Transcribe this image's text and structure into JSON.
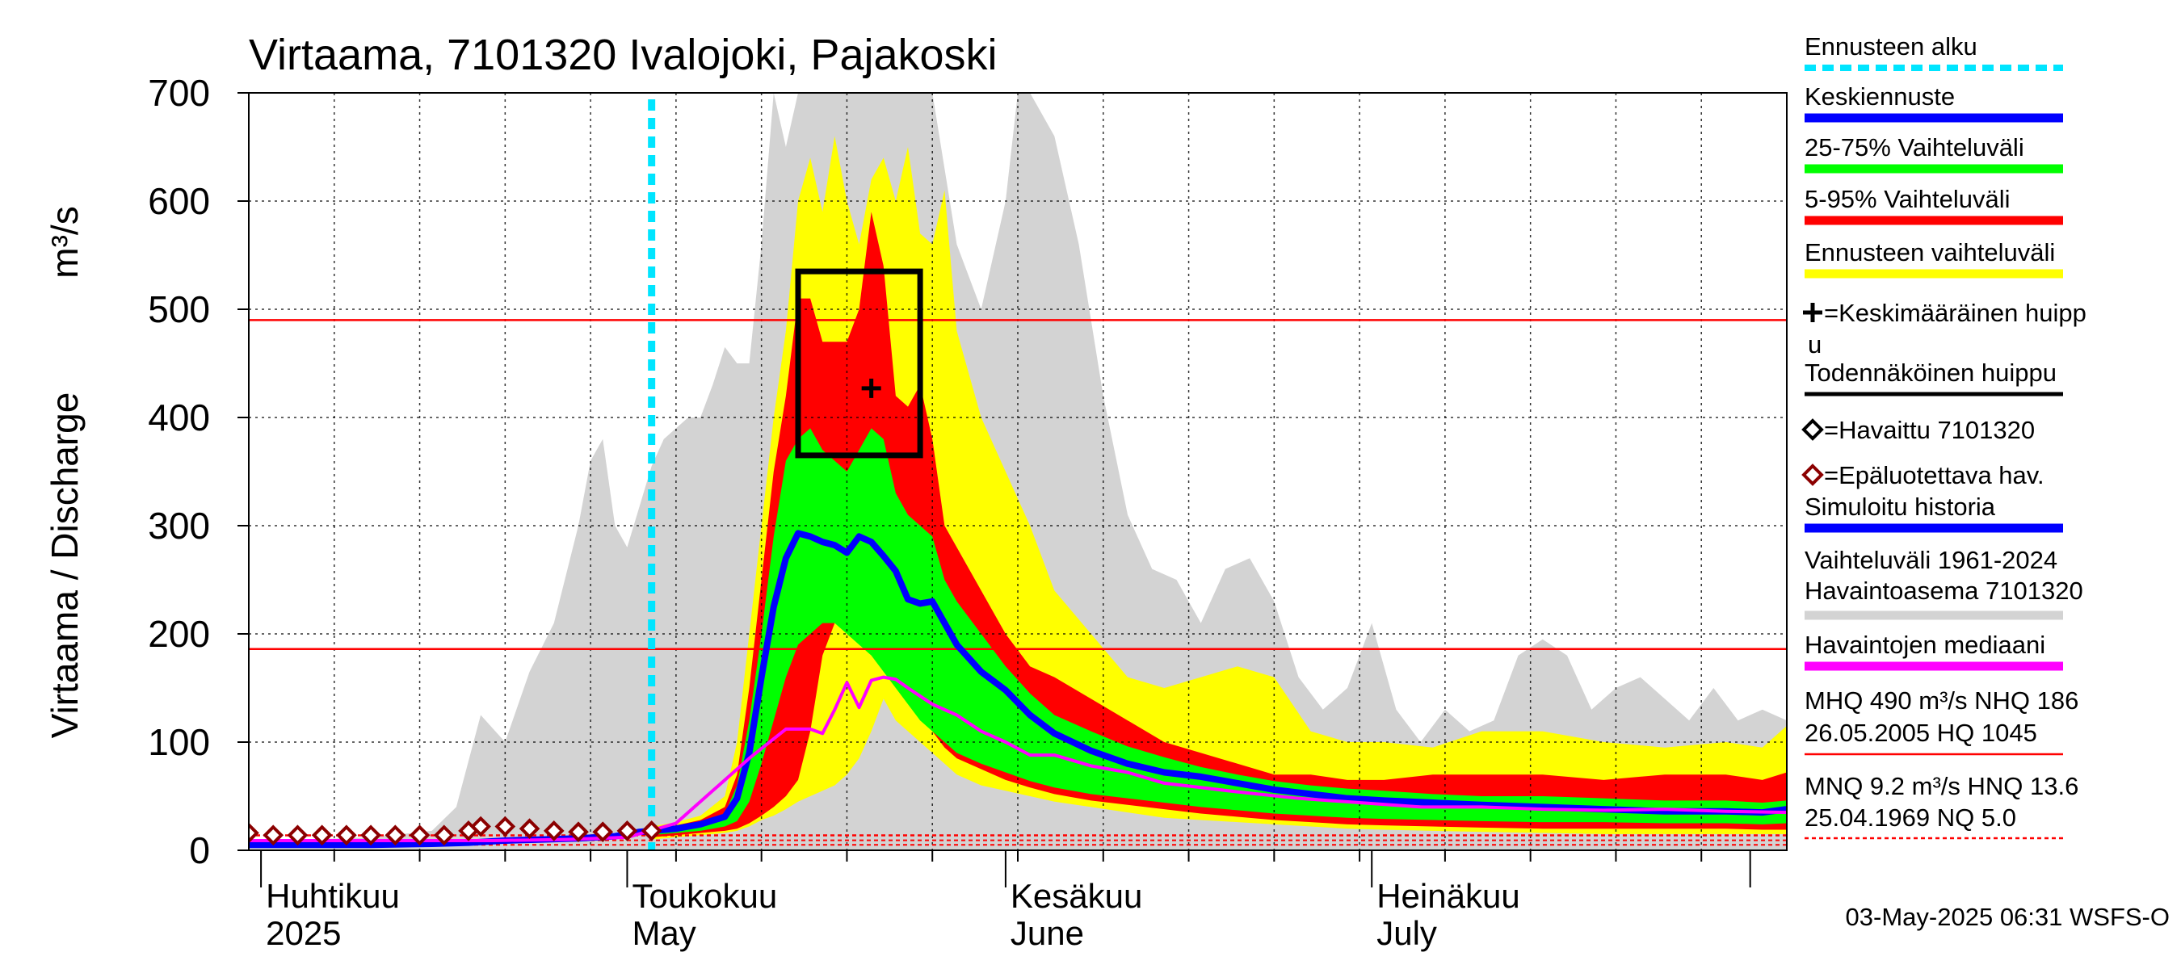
{
  "chart_data": {
    "type": "area",
    "title": "Virtaama, 7101320 Ivalojoki, Pajakoski",
    "ylabel": "Virtaama / Discharge",
    "yunit": "m³/s",
    "ylim": [
      0,
      700
    ],
    "yticks": [
      0,
      100,
      200,
      300,
      400,
      500,
      600,
      700
    ],
    "xlim": [
      "2025-03-31",
      "2025-08-04"
    ],
    "x_month_ticks": [
      "2025-04-01",
      "2025-05-01",
      "2025-06-01",
      "2025-07-01",
      "2025-08-01"
    ],
    "x_week_ticks": [
      "2025-04-07",
      "2025-04-14",
      "2025-04-21",
      "2025-04-28",
      "2025-05-05",
      "2025-05-12",
      "2025-05-19",
      "2025-05-26",
      "2025-06-02",
      "2025-06-09",
      "2025-06-16",
      "2025-06-23",
      "2025-06-30",
      "2025-07-07",
      "2025-07-14",
      "2025-07-21",
      "2025-07-28"
    ],
    "month_labels": [
      {
        "date": "2025-04-01",
        "fi": "Huhtikuu",
        "en": "2025"
      },
      {
        "date": "2025-05-01",
        "fi": "Toukokuu",
        "en": "May"
      },
      {
        "date": "2025-06-01",
        "fi": "Kesäkuu",
        "en": "June"
      },
      {
        "date": "2025-07-01",
        "fi": "Heinäkuu",
        "en": "July"
      }
    ],
    "forecast_start": "2025-05-03",
    "grid": true,
    "legend_position": "right",
    "reference_lines": [
      {
        "name": "MHQ",
        "value": 490,
        "color": "#ff0000"
      },
      {
        "name": "MQ",
        "value": 186,
        "color": "#ff0000"
      }
    ],
    "low_reference_lines": [
      14,
      13.6,
      9.2,
      5.0
    ],
    "probable_peak_box": {
      "x0": "2025-05-15",
      "x1": "2025-05-25",
      "y0": 365,
      "y1": 535
    },
    "mean_peak": {
      "x": "2025-05-21",
      "y": 427
    },
    "series": [
      {
        "name": "Vaihteluväli 1961-2024 Havaintoasema 7101320",
        "color": "#d3d3d3",
        "x": [
          "2025-03-31",
          "2025-04-05",
          "2025-04-10",
          "2025-04-15",
          "2025-04-17",
          "2025-04-19",
          "2025-04-21",
          "2025-04-23",
          "2025-04-25",
          "2025-04-27",
          "2025-04-28",
          "2025-04-29",
          "2025-04-30",
          "2025-05-01",
          "2025-05-03",
          "2025-05-04",
          "2025-05-05",
          "2025-05-06",
          "2025-05-07",
          "2025-05-08",
          "2025-05-09",
          "2025-05-10",
          "2025-05-11",
          "2025-05-12",
          "2025-05-13",
          "2025-05-14",
          "2025-05-15",
          "2025-05-18",
          "2025-05-21",
          "2025-05-24",
          "2025-05-26",
          "2025-05-28",
          "2025-05-30",
          "2025-06-01",
          "2025-06-02",
          "2025-06-03",
          "2025-06-05",
          "2025-06-07",
          "2025-06-09",
          "2025-06-11",
          "2025-06-13",
          "2025-06-15",
          "2025-06-17",
          "2025-06-19",
          "2025-06-21",
          "2025-06-23",
          "2025-06-25",
          "2025-06-27",
          "2025-06-29",
          "2025-07-01",
          "2025-07-03",
          "2025-07-05",
          "2025-07-07",
          "2025-07-09",
          "2025-07-11",
          "2025-07-13",
          "2025-07-15",
          "2025-07-17",
          "2025-07-19",
          "2025-07-21",
          "2025-07-23",
          "2025-07-25",
          "2025-07-27",
          "2025-07-29",
          "2025-07-31",
          "2025-08-02",
          "2025-08-04"
        ],
        "upper": [
          10,
          10,
          12,
          18,
          40,
          125,
          100,
          165,
          210,
          300,
          360,
          380,
          300,
          280,
          355,
          380,
          390,
          400,
          400,
          430,
          465,
          450,
          450,
          560,
          700,
          650,
          700,
          700,
          700,
          700,
          700,
          560,
          500,
          600,
          700,
          700,
          660,
          560,
          420,
          310,
          260,
          250,
          210,
          260,
          270,
          230,
          160,
          130,
          150,
          210,
          130,
          100,
          130,
          110,
          120,
          180,
          195,
          180,
          130,
          150,
          160,
          140,
          120,
          150,
          120,
          130,
          120
        ],
        "lower": [
          0,
          0,
          0,
          0,
          0,
          0,
          0,
          0,
          0,
          0,
          0,
          0,
          0,
          0,
          0,
          0,
          0,
          0,
          0,
          0,
          0,
          0,
          0,
          0,
          0,
          0,
          0,
          0,
          0,
          0,
          0,
          0,
          0,
          0,
          0,
          0,
          0,
          0,
          0,
          0,
          0,
          0,
          0,
          0,
          0,
          0,
          0,
          0,
          0,
          0,
          0,
          0,
          0,
          0,
          0,
          0,
          0,
          0,
          0,
          0,
          0,
          0,
          0,
          0,
          0,
          0,
          0
        ]
      },
      {
        "name": "Ennusteen vaihteluväli",
        "color": "#ffff00",
        "x": [
          "2025-05-03",
          "2025-05-05",
          "2025-05-07",
          "2025-05-09",
          "2025-05-10",
          "2025-05-11",
          "2025-05-12",
          "2025-05-13",
          "2025-05-14",
          "2025-05-15",
          "2025-05-16",
          "2025-05-17",
          "2025-05-18",
          "2025-05-19",
          "2025-05-20",
          "2025-05-21",
          "2025-05-22",
          "2025-05-23",
          "2025-05-24",
          "2025-05-25",
          "2025-05-26",
          "2025-05-27",
          "2025-05-28",
          "2025-05-30",
          "2025-06-01",
          "2025-06-03",
          "2025-06-05",
          "2025-06-08",
          "2025-06-11",
          "2025-06-14",
          "2025-06-17",
          "2025-06-20",
          "2025-06-23",
          "2025-06-26",
          "2025-06-29",
          "2025-07-02",
          "2025-07-06",
          "2025-07-10",
          "2025-07-15",
          "2025-07-20",
          "2025-07-25",
          "2025-07-30",
          "2025-08-02",
          "2025-08-04"
        ],
        "upper": [
          22,
          26,
          32,
          50,
          100,
          200,
          300,
          400,
          480,
          600,
          640,
          590,
          660,
          600,
          560,
          620,
          640,
          600,
          650,
          570,
          560,
          610,
          480,
          400,
          350,
          300,
          240,
          200,
          160,
          150,
          160,
          170,
          160,
          110,
          100,
          100,
          95,
          110,
          110,
          100,
          95,
          100,
          95,
          115
        ],
        "lower": [
          10,
          12,
          14,
          16,
          18,
          22,
          28,
          32,
          38,
          45,
          50,
          55,
          60,
          70,
          85,
          110,
          140,
          120,
          110,
          100,
          90,
          80,
          70,
          60,
          55,
          50,
          45,
          40,
          35,
          30,
          28,
          26,
          24,
          22,
          20,
          19,
          18,
          17,
          16,
          15,
          15,
          15,
          15,
          15
        ]
      },
      {
        "name": "5-95% Vaihteluväli",
        "color": "#ff0000",
        "x": [
          "2025-05-03",
          "2025-05-05",
          "2025-05-07",
          "2025-05-09",
          "2025-05-10",
          "2025-05-11",
          "2025-05-12",
          "2025-05-13",
          "2025-05-14",
          "2025-05-15",
          "2025-05-16",
          "2025-05-17",
          "2025-05-18",
          "2025-05-19",
          "2025-05-20",
          "2025-05-21",
          "2025-05-22",
          "2025-05-23",
          "2025-05-24",
          "2025-05-25",
          "2025-05-26",
          "2025-05-27",
          "2025-05-28",
          "2025-05-30",
          "2025-06-01",
          "2025-06-03",
          "2025-06-05",
          "2025-06-08",
          "2025-06-11",
          "2025-06-14",
          "2025-06-17",
          "2025-06-20",
          "2025-06-23",
          "2025-06-26",
          "2025-06-29",
          "2025-07-02",
          "2025-07-06",
          "2025-07-10",
          "2025-07-15",
          "2025-07-20",
          "2025-07-25",
          "2025-07-30",
          "2025-08-02",
          "2025-08-04"
        ],
        "upper": [
          20,
          23,
          28,
          40,
          70,
          150,
          250,
          350,
          420,
          510,
          510,
          470,
          470,
          470,
          500,
          590,
          540,
          420,
          410,
          430,
          380,
          300,
          280,
          240,
          200,
          170,
          160,
          140,
          120,
          100,
          90,
          80,
          70,
          70,
          65,
          65,
          70,
          70,
          70,
          65,
          70,
          70,
          65,
          72
        ],
        "lower": [
          12,
          14,
          16,
          18,
          20,
          25,
          32,
          40,
          50,
          65,
          110,
          180,
          210,
          230,
          220,
          200,
          180,
          170,
          150,
          130,
          110,
          95,
          85,
          75,
          65,
          58,
          52,
          46,
          42,
          38,
          34,
          31,
          28,
          26,
          24,
          23,
          22,
          21,
          20,
          20,
          20,
          20,
          19,
          19
        ]
      },
      {
        "name": "25-75% Vaihteluväli",
        "color": "#00ff00",
        "x": [
          "2025-05-03",
          "2025-05-05",
          "2025-05-07",
          "2025-05-09",
          "2025-05-10",
          "2025-05-11",
          "2025-05-12",
          "2025-05-13",
          "2025-05-14",
          "2025-05-15",
          "2025-05-16",
          "2025-05-17",
          "2025-05-18",
          "2025-05-19",
          "2025-05-20",
          "2025-05-21",
          "2025-05-22",
          "2025-05-23",
          "2025-05-24",
          "2025-05-25",
          "2025-05-26",
          "2025-05-27",
          "2025-05-28",
          "2025-05-30",
          "2025-06-01",
          "2025-06-03",
          "2025-06-05",
          "2025-06-08",
          "2025-06-11",
          "2025-06-14",
          "2025-06-17",
          "2025-06-20",
          "2025-06-23",
          "2025-06-26",
          "2025-06-29",
          "2025-07-02",
          "2025-07-06",
          "2025-07-10",
          "2025-07-15",
          "2025-07-20",
          "2025-07-25",
          "2025-07-30",
          "2025-08-02",
          "2025-08-04"
        ],
        "upper": [
          19,
          22,
          26,
          34,
          60,
          120,
          200,
          290,
          360,
          380,
          390,
          370,
          360,
          350,
          370,
          390,
          380,
          330,
          310,
          300,
          290,
          250,
          230,
          200,
          170,
          145,
          125,
          110,
          96,
          86,
          77,
          70,
          64,
          60,
          57,
          55,
          52,
          50,
          50,
          48,
          46,
          46,
          44,
          46
        ],
        "lower": [
          14,
          16,
          18,
          22,
          27,
          45,
          80,
          120,
          160,
          190,
          200,
          210,
          210,
          200,
          190,
          180,
          165,
          150,
          135,
          120,
          110,
          100,
          90,
          80,
          72,
          64,
          58,
          52,
          48,
          44,
          40,
          37,
          34,
          32,
          30,
          29,
          28,
          27,
          26,
          26,
          25,
          25,
          24,
          25
        ]
      },
      {
        "name": "Keskiennuste",
        "color": "#0000ff",
        "x": [
          "2025-05-03",
          "2025-05-05",
          "2025-05-07",
          "2025-05-09",
          "2025-05-10",
          "2025-05-11",
          "2025-05-12",
          "2025-05-13",
          "2025-05-14",
          "2025-05-15",
          "2025-05-16",
          "2025-05-17",
          "2025-05-18",
          "2025-05-19",
          "2025-05-20",
          "2025-05-21",
          "2025-05-22",
          "2025-05-23",
          "2025-05-24",
          "2025-05-25",
          "2025-05-26",
          "2025-05-27",
          "2025-05-28",
          "2025-05-30",
          "2025-06-01",
          "2025-06-03",
          "2025-06-05",
          "2025-06-08",
          "2025-06-11",
          "2025-06-14",
          "2025-06-17",
          "2025-06-20",
          "2025-06-23",
          "2025-06-26",
          "2025-06-29",
          "2025-07-02",
          "2025-07-06",
          "2025-07-10",
          "2025-07-15",
          "2025-07-20",
          "2025-07-25",
          "2025-07-30",
          "2025-08-02",
          "2025-08-04"
        ],
        "values": [
          18,
          20,
          24,
          31,
          48,
          90,
          160,
          225,
          270,
          293,
          290,
          285,
          282,
          275,
          290,
          285,
          272,
          258,
          232,
          228,
          230,
          210,
          190,
          165,
          148,
          125,
          108,
          92,
          80,
          72,
          68,
          62,
          56,
          52,
          48,
          46,
          44,
          42,
          40,
          38,
          36,
          36,
          35,
          38
        ]
      },
      {
        "name": "Simuloitu historia",
        "color": "#0000ff",
        "x": [
          "2025-03-31",
          "2025-04-05",
          "2025-04-10",
          "2025-04-15",
          "2025-04-18",
          "2025-04-21",
          "2025-04-24",
          "2025-04-27",
          "2025-04-30",
          "2025-05-01",
          "2025-05-02",
          "2025-05-03"
        ],
        "values": [
          5,
          5,
          5,
          6,
          7,
          9,
          10,
          11,
          13,
          15,
          17,
          18
        ]
      },
      {
        "name": "Havaintojen mediaani",
        "color": "#ff00ff",
        "x": [
          "2025-03-31",
          "2025-04-10",
          "2025-04-20",
          "2025-04-26",
          "2025-05-01",
          "2025-05-05",
          "2025-05-08",
          "2025-05-11",
          "2025-05-14",
          "2025-05-16",
          "2025-05-17",
          "2025-05-18",
          "2025-05-19",
          "2025-05-20",
          "2025-05-21",
          "2025-05-22",
          "2025-05-23",
          "2025-05-24",
          "2025-05-26",
          "2025-05-28",
          "2025-05-30",
          "2025-06-01",
          "2025-06-03",
          "2025-06-05",
          "2025-06-08",
          "2025-06-11",
          "2025-06-14",
          "2025-06-17",
          "2025-06-20",
          "2025-06-25",
          "2025-06-30",
          "2025-07-05",
          "2025-07-10",
          "2025-07-15",
          "2025-07-20",
          "2025-07-25",
          "2025-07-30",
          "2025-08-04"
        ],
        "values": [
          9,
          9,
          9,
          10,
          12,
          25,
          55,
          85,
          112,
          112,
          108,
          130,
          155,
          132,
          157,
          160,
          158,
          150,
          135,
          125,
          110,
          100,
          88,
          88,
          78,
          72,
          62,
          58,
          54,
          48,
          44,
          40,
          40,
          38,
          37,
          38,
          36,
          35
        ]
      }
    ],
    "observed": {
      "name": "Havaittu 7101320",
      "color": "#000000",
      "values": []
    },
    "unreliable_observed": {
      "name": "Epäluotettava hav.",
      "color": "#8b0000",
      "x": [
        "2025-03-31",
        "2025-04-02",
        "2025-04-04",
        "2025-04-06",
        "2025-04-08",
        "2025-04-10",
        "2025-04-12",
        "2025-04-14",
        "2025-04-16",
        "2025-04-18",
        "2025-04-19",
        "2025-04-21",
        "2025-04-23",
        "2025-04-25",
        "2025-04-27",
        "2025-04-29",
        "2025-05-01",
        "2025-05-03"
      ],
      "values": [
        16,
        14,
        14,
        14,
        14,
        14,
        14,
        14,
        14,
        18,
        22,
        22,
        20,
        18,
        17,
        17,
        18,
        18
      ]
    }
  },
  "legend": {
    "items": [
      {
        "label": "Ennusteen alku",
        "swatch": "dashed",
        "color": "#00e5ff"
      },
      {
        "label": "Keskiennuste",
        "swatch": "line",
        "color": "#0000ff"
      },
      {
        "label": "25-75% Vaihteluväli",
        "swatch": "line",
        "color": "#00ff00"
      },
      {
        "label": "5-95% Vaihteluväli",
        "swatch": "line",
        "color": "#ff0000"
      },
      {
        "label": "Ennusteen vaihteluväli",
        "swatch": "line",
        "color": "#ffff00"
      },
      {
        "label": "=Keskimääräinen huipp",
        "label2": "u",
        "swatch": "plus-marker",
        "color": "#000000"
      },
      {
        "label": "Todennäköinen huippu",
        "swatch": "line",
        "color": "#000000"
      },
      {
        "label": "=Havaittu 7101320",
        "swatch": "diamond-marker",
        "color": "#000000"
      },
      {
        "label": "=Epäluotettava hav.",
        "swatch": "diamond-marker",
        "color": "#8b0000"
      },
      {
        "label": "Simuloitu historia",
        "swatch": "line",
        "color": "#0000ff"
      },
      {
        "label": "Vaihteluväli 1961-2024",
        "label2": " Havaintoasema 7101320",
        "swatch": "line",
        "color": "#d3d3d3"
      },
      {
        "label": "Havaintojen mediaani",
        "swatch": "line",
        "color": "#ff00ff"
      }
    ],
    "stats1_line1": "MHQ  490 m³/s NHQ  186",
    "stats1_line2": "26.05.2005 HQ 1045",
    "stats2_line1": "MNQ  9.2 m³/s HNQ 13.6",
    "stats2_line2": "25.04.1969 NQ  5.0"
  },
  "footer": "03-May-2025 06:31 WSFS-O"
}
